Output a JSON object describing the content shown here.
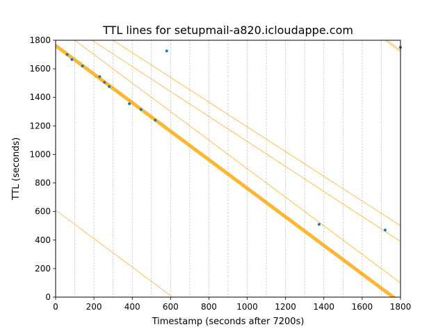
{
  "chart_data": {
    "type": "line",
    "title": "TTL lines for setupmail-a820.icloudappe.com",
    "xlabel": "Timestamp (seconds after 7200s)",
    "ylabel": "TTL (seconds)",
    "xlim": [
      0,
      1800
    ],
    "ylim": [
      0,
      1800
    ],
    "xticks": [
      0,
      200,
      400,
      600,
      800,
      1000,
      1200,
      1400,
      1600,
      1800
    ],
    "yticks": [
      0,
      200,
      400,
      600,
      800,
      1000,
      1200,
      1400,
      1600,
      1800
    ],
    "grid": "vertical dashed every 100",
    "line_color": "#ffa500",
    "point_color": "#1f77b4",
    "lines": [
      {
        "x": [
          0,
          1750
        ],
        "y": [
          1750,
          0
        ]
      },
      {
        "x": [
          0,
          1755
        ],
        "y": [
          1755,
          0
        ]
      },
      {
        "x": [
          0,
          1760
        ],
        "y": [
          1760,
          0
        ]
      },
      {
        "x": [
          0,
          1765
        ],
        "y": [
          1765,
          0
        ]
      },
      {
        "x": [
          0,
          1770
        ],
        "y": [
          1770,
          0
        ]
      },
      {
        "x": [
          0,
          1775
        ],
        "y": [
          1775,
          0
        ]
      },
      {
        "x": [
          100,
          1800
        ],
        "y": [
          1800,
          100
        ]
      },
      {
        "x": [
          190,
          1800
        ],
        "y": [
          1800,
          390
        ]
      },
      {
        "x": [
          300,
          1800
        ],
        "y": [
          1800,
          500
        ]
      },
      {
        "x": [
          0,
          610
        ],
        "y": [
          610,
          0
        ]
      },
      {
        "x": [
          1720,
          1800
        ],
        "y": [
          1800,
          1720
        ]
      },
      {
        "x": [
          1730,
          1800
        ],
        "y": [
          1800,
          1730
        ]
      }
    ],
    "points": {
      "x": [
        60,
        85,
        140,
        230,
        255,
        280,
        385,
        445,
        520,
        580,
        1375,
        1720,
        1800
      ],
      "y": [
        1700,
        1665,
        1620,
        1545,
        1505,
        1475,
        1355,
        1315,
        1240,
        1725,
        510,
        470,
        1750
      ]
    }
  }
}
